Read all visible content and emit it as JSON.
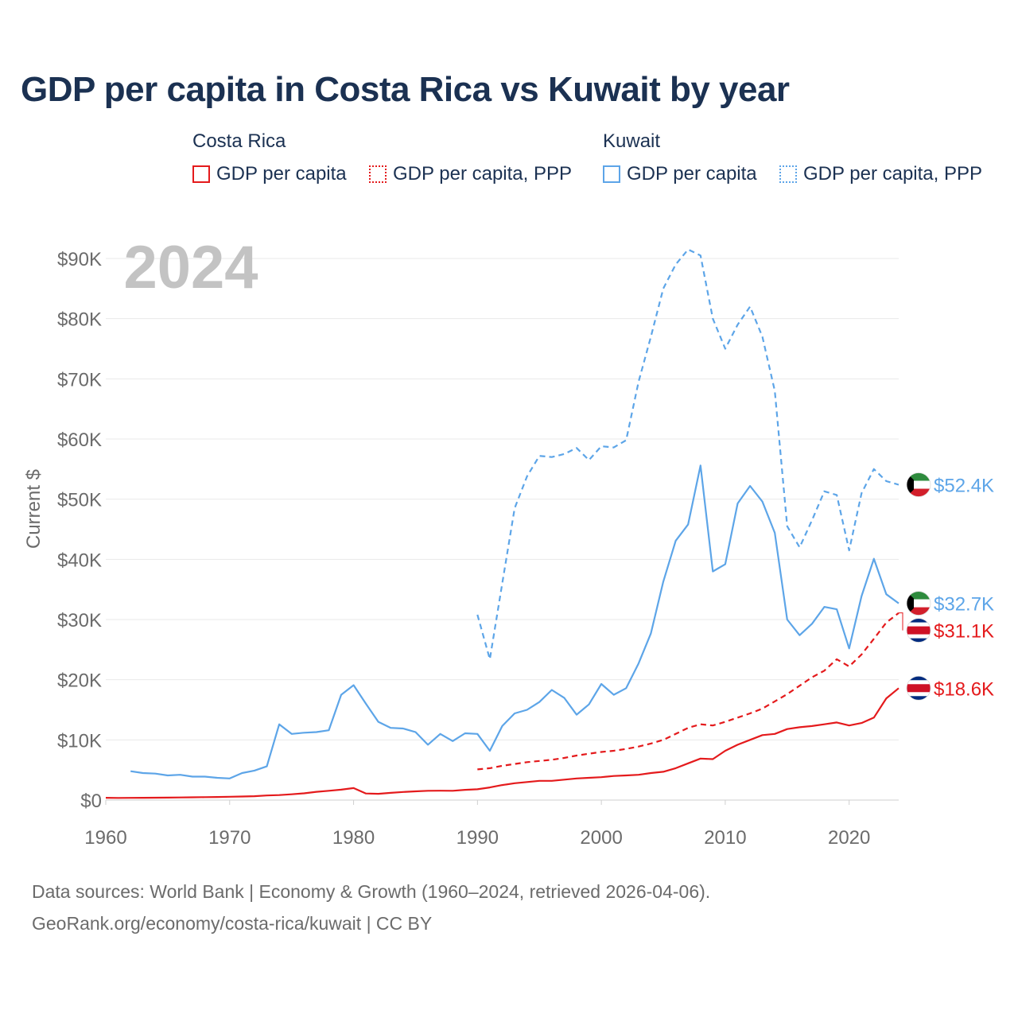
{
  "chart_data": {
    "type": "line",
    "title": "GDP per capita in Costa Rica vs Kuwait by year",
    "year_label": "2024",
    "ylabel": "Current $",
    "xlabel": "",
    "xlim": [
      1960,
      2024
    ],
    "ylim": [
      0,
      90000
    ],
    "x_ticks": [
      1960,
      1970,
      1980,
      1990,
      2000,
      2010,
      2020
    ],
    "y_ticks": [
      {
        "value": 0,
        "label": "$0"
      },
      {
        "value": 10000,
        "label": "$10K"
      },
      {
        "value": 20000,
        "label": "$20K"
      },
      {
        "value": 30000,
        "label": "$30K"
      },
      {
        "value": 40000,
        "label": "$40K"
      },
      {
        "value": 50000,
        "label": "$50K"
      },
      {
        "value": 60000,
        "label": "$60K"
      },
      {
        "value": 70000,
        "label": "$70K"
      },
      {
        "value": 80000,
        "label": "$80K"
      },
      {
        "value": 90000,
        "label": "$90K"
      }
    ],
    "grid": true,
    "legend_groups": [
      {
        "country": "Costa Rica",
        "items": [
          {
            "label": "GDP per capita",
            "color": "#e41a1c",
            "style": "solid"
          },
          {
            "label": "GDP per capita, PPP",
            "color": "#e41a1c",
            "style": "dotted"
          }
        ]
      },
      {
        "country": "Kuwait",
        "items": [
          {
            "label": "GDP per capita",
            "color": "#5da5e8",
            "style": "solid"
          },
          {
            "label": "GDP per capita, PPP",
            "color": "#5da5e8",
            "style": "dotted"
          }
        ]
      }
    ],
    "series": [
      {
        "name": "Kuwait GDP per capita, PPP",
        "country": "Kuwait",
        "color": "#5da5e8",
        "dashed": true,
        "end_label": "$52.4K",
        "x": [
          1990,
          1991,
          1992,
          1993,
          1994,
          1995,
          1996,
          1997,
          1998,
          1999,
          2000,
          2001,
          2002,
          2003,
          2004,
          2005,
          2006,
          2007,
          2008,
          2009,
          2010,
          2011,
          2012,
          2013,
          2014,
          2015,
          2016,
          2017,
          2018,
          2019,
          2020,
          2021,
          2022,
          2023,
          2024
        ],
        "y": [
          30800,
          23400,
          36000,
          48500,
          53800,
          57200,
          57000,
          57500,
          58500,
          56500,
          58800,
          58600,
          59800,
          69500,
          77000,
          85000,
          89000,
          91500,
          90500,
          80000,
          75000,
          79000,
          82000,
          77000,
          68000,
          45500,
          42000,
          46500,
          51300,
          50700,
          41500,
          51000,
          55000,
          53000,
          52400
        ]
      },
      {
        "name": "Kuwait GDP per capita",
        "country": "Kuwait",
        "color": "#5da5e8",
        "dashed": false,
        "end_label": "$32.7K",
        "x": [
          1962,
          1963,
          1964,
          1965,
          1966,
          1967,
          1968,
          1969,
          1970,
          1971,
          1972,
          1973,
          1974,
          1975,
          1976,
          1977,
          1978,
          1979,
          1980,
          1981,
          1982,
          1983,
          1984,
          1985,
          1986,
          1987,
          1988,
          1989,
          1990,
          1991,
          1992,
          1993,
          1994,
          1995,
          1996,
          1997,
          1998,
          1999,
          2000,
          2001,
          2002,
          2003,
          2004,
          2005,
          2006,
          2007,
          2008,
          2009,
          2010,
          2011,
          2012,
          2013,
          2014,
          2015,
          2016,
          2017,
          2018,
          2019,
          2020,
          2021,
          2022,
          2023,
          2024
        ],
        "y": [
          4800,
          4500,
          4400,
          4100,
          4200,
          3900,
          3900,
          3700,
          3600,
          4500,
          4900,
          5600,
          12600,
          11000,
          11200,
          11300,
          11600,
          17500,
          19100,
          16000,
          13000,
          12000,
          11900,
          11300,
          9200,
          11000,
          9800,
          11100,
          11000,
          8200,
          12300,
          14400,
          15000,
          16300,
          18300,
          17000,
          14200,
          15900,
          19300,
          17500,
          18600,
          22700,
          27700,
          36300,
          43100,
          45800,
          55600,
          38000,
          39200,
          49300,
          52200,
          49600,
          44400,
          30000,
          27400,
          29300,
          32100,
          31700,
          25200,
          33900,
          40100,
          34200,
          32700
        ]
      },
      {
        "name": "Costa Rica GDP per capita, PPP",
        "country": "Costa Rica",
        "color": "#e41a1c",
        "dashed": true,
        "end_label": "$31.1K",
        "x": [
          1990,
          1991,
          1992,
          1993,
          1994,
          1995,
          1996,
          1997,
          1998,
          1999,
          2000,
          2001,
          2002,
          2003,
          2004,
          2005,
          2006,
          2007,
          2008,
          2009,
          2010,
          2011,
          2012,
          2013,
          2014,
          2015,
          2016,
          2017,
          2018,
          2019,
          2020,
          2021,
          2022,
          2023,
          2024
        ],
        "y": [
          5100,
          5300,
          5700,
          6000,
          6300,
          6500,
          6700,
          7000,
          7400,
          7700,
          8000,
          8200,
          8500,
          8900,
          9400,
          10000,
          11000,
          12000,
          12600,
          12400,
          13000,
          13700,
          14400,
          15200,
          16400,
          17600,
          19000,
          20400,
          21500,
          23400,
          22200,
          24200,
          26800,
          29500,
          31100
        ]
      },
      {
        "name": "Costa Rica GDP per capita",
        "country": "Costa Rica",
        "color": "#e41a1c",
        "dashed": false,
        "end_label": "$18.6K",
        "x": [
          1960,
          1961,
          1962,
          1963,
          1964,
          1965,
          1966,
          1967,
          1968,
          1969,
          1970,
          1971,
          1972,
          1973,
          1974,
          1975,
          1976,
          1977,
          1978,
          1979,
          1980,
          1981,
          1982,
          1983,
          1984,
          1985,
          1986,
          1987,
          1988,
          1989,
          1990,
          1991,
          1992,
          1993,
          1994,
          1995,
          1996,
          1997,
          1998,
          1999,
          2000,
          2001,
          2002,
          2003,
          2004,
          2005,
          2006,
          2007,
          2008,
          2009,
          2010,
          2011,
          2012,
          2013,
          2014,
          2015,
          2016,
          2017,
          2018,
          2019,
          2020,
          2021,
          2022,
          2023,
          2024
        ],
        "y": [
          380,
          360,
          370,
          380,
          390,
          410,
          440,
          460,
          490,
          510,
          560,
          590,
          650,
          760,
          830,
          960,
          1120,
          1380,
          1550,
          1730,
          2000,
          1100,
          1050,
          1200,
          1350,
          1450,
          1550,
          1560,
          1550,
          1700,
          1800,
          2100,
          2500,
          2800,
          3000,
          3200,
          3200,
          3400,
          3600,
          3700,
          3800,
          4000,
          4100,
          4200,
          4500,
          4700,
          5300,
          6100,
          6900,
          6800,
          8200,
          9200,
          10000,
          10800,
          11000,
          11800,
          12100,
          12300,
          12600,
          12900,
          12400,
          12800,
          13700,
          16900,
          18600
        ]
      }
    ]
  },
  "footer": {
    "line1": "Data sources: World Bank | Economy & Growth (1960–2024, retrieved 2026-04-06).",
    "line2": "GeoRank.org/economy/costa-rica/kuwait | CC BY"
  }
}
